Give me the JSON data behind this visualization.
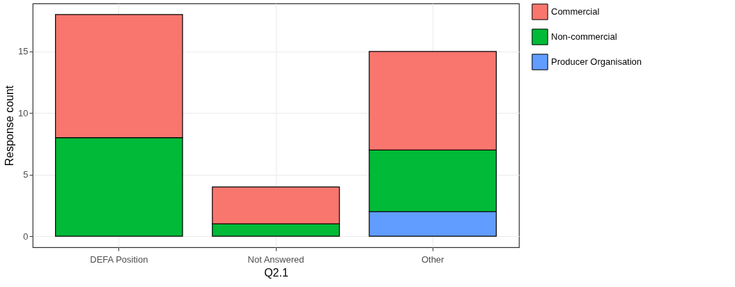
{
  "chart_data": {
    "type": "bar",
    "stacked": true,
    "xlabel": "Q2.1",
    "ylabel": "Response count",
    "categories": [
      "DEFA Position",
      "Not Answered",
      "Other"
    ],
    "series": [
      {
        "name": "Producer Organisation",
        "color": "#619cff",
        "values": [
          null,
          null,
          2
        ]
      },
      {
        "name": "Non-commercial",
        "color": "#00ba38",
        "values": [
          8,
          1,
          5
        ]
      },
      {
        "name": "Commercial",
        "color": "#f8766d",
        "values": [
          10,
          3,
          8
        ]
      }
    ],
    "ylim": [
      -0.9,
      18.9
    ],
    "yticks": [
      0,
      5,
      10,
      15
    ],
    "grid": true,
    "legend": "right"
  }
}
